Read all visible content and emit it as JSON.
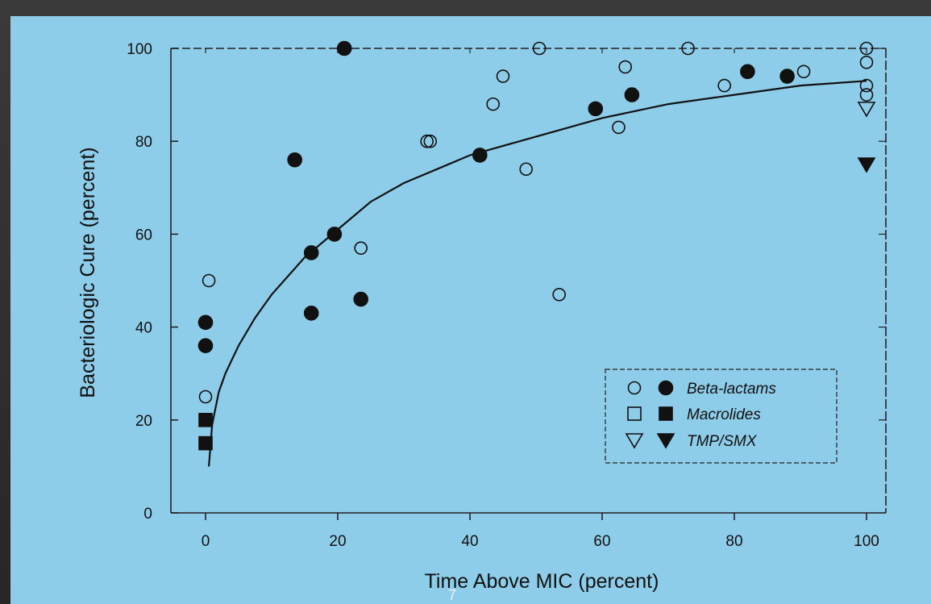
{
  "chart_data": {
    "type": "scatter",
    "xlabel": "Time Above MIC (percent)",
    "ylabel": "Bacteriologic Cure (percent)",
    "xlim": [
      -5,
      102
    ],
    "ylim": [
      0,
      100
    ],
    "xticks": [
      0,
      20,
      40,
      60,
      80,
      100
    ],
    "yticks": [
      0,
      20,
      40,
      60,
      80,
      100
    ],
    "legend_position": "bottom-right",
    "legend": [
      {
        "label": "Beta-lactams",
        "open_marker": "circle",
        "filled_marker": "circle"
      },
      {
        "label": "Macrolides",
        "open_marker": "square",
        "filled_marker": "square"
      },
      {
        "label": "TMP/SMX",
        "open_marker": "triangle-down",
        "filled_marker": "triangle-down"
      }
    ],
    "series": [
      {
        "name": "Beta-lactams",
        "marker": "circle-open",
        "points": [
          [
            0.5,
            50
          ],
          [
            0,
            25
          ],
          [
            23.5,
            57
          ],
          [
            33.5,
            80
          ],
          [
            34,
            80
          ],
          [
            43.5,
            88
          ],
          [
            45,
            94
          ],
          [
            48.5,
            74
          ],
          [
            50.5,
            100
          ],
          [
            53.5,
            47
          ],
          [
            62.5,
            83
          ],
          [
            63.5,
            96
          ],
          [
            73,
            100
          ],
          [
            78.5,
            92
          ],
          [
            90.5,
            95
          ],
          [
            100,
            100
          ],
          [
            100,
            97
          ],
          [
            100,
            92
          ],
          [
            100,
            90
          ]
        ]
      },
      {
        "name": "Beta-lactams",
        "marker": "circle-filled",
        "points": [
          [
            0,
            41
          ],
          [
            0,
            36
          ],
          [
            13.5,
            76
          ],
          [
            16,
            56
          ],
          [
            16,
            43
          ],
          [
            19.5,
            60
          ],
          [
            21,
            100
          ],
          [
            23.5,
            46
          ],
          [
            41.5,
            77
          ],
          [
            59,
            87
          ],
          [
            64.5,
            90
          ],
          [
            82,
            95
          ],
          [
            88,
            94
          ]
        ]
      },
      {
        "name": "Macrolides",
        "marker": "square-filled",
        "points": [
          [
            0,
            20
          ],
          [
            0,
            15
          ]
        ]
      },
      {
        "name": "TMP/SMX",
        "marker": "triangle-open",
        "points": [
          [
            100,
            87
          ]
        ]
      },
      {
        "name": "TMP/SMX",
        "marker": "triangle-filled",
        "points": [
          [
            100,
            75
          ]
        ]
      }
    ],
    "fit_curve": {
      "points": [
        [
          0.5,
          10
        ],
        [
          1,
          19
        ],
        [
          2,
          26
        ],
        [
          3,
          30
        ],
        [
          5,
          36
        ],
        [
          7.5,
          42
        ],
        [
          10,
          47
        ],
        [
          15,
          55
        ],
        [
          20,
          61
        ],
        [
          25,
          67
        ],
        [
          30,
          71
        ],
        [
          35,
          74
        ],
        [
          40,
          77
        ],
        [
          50,
          81
        ],
        [
          60,
          85
        ],
        [
          70,
          88
        ],
        [
          80,
          90
        ],
        [
          90,
          92
        ],
        [
          100,
          93
        ]
      ]
    }
  },
  "footer": {
    "page_number": "7"
  }
}
